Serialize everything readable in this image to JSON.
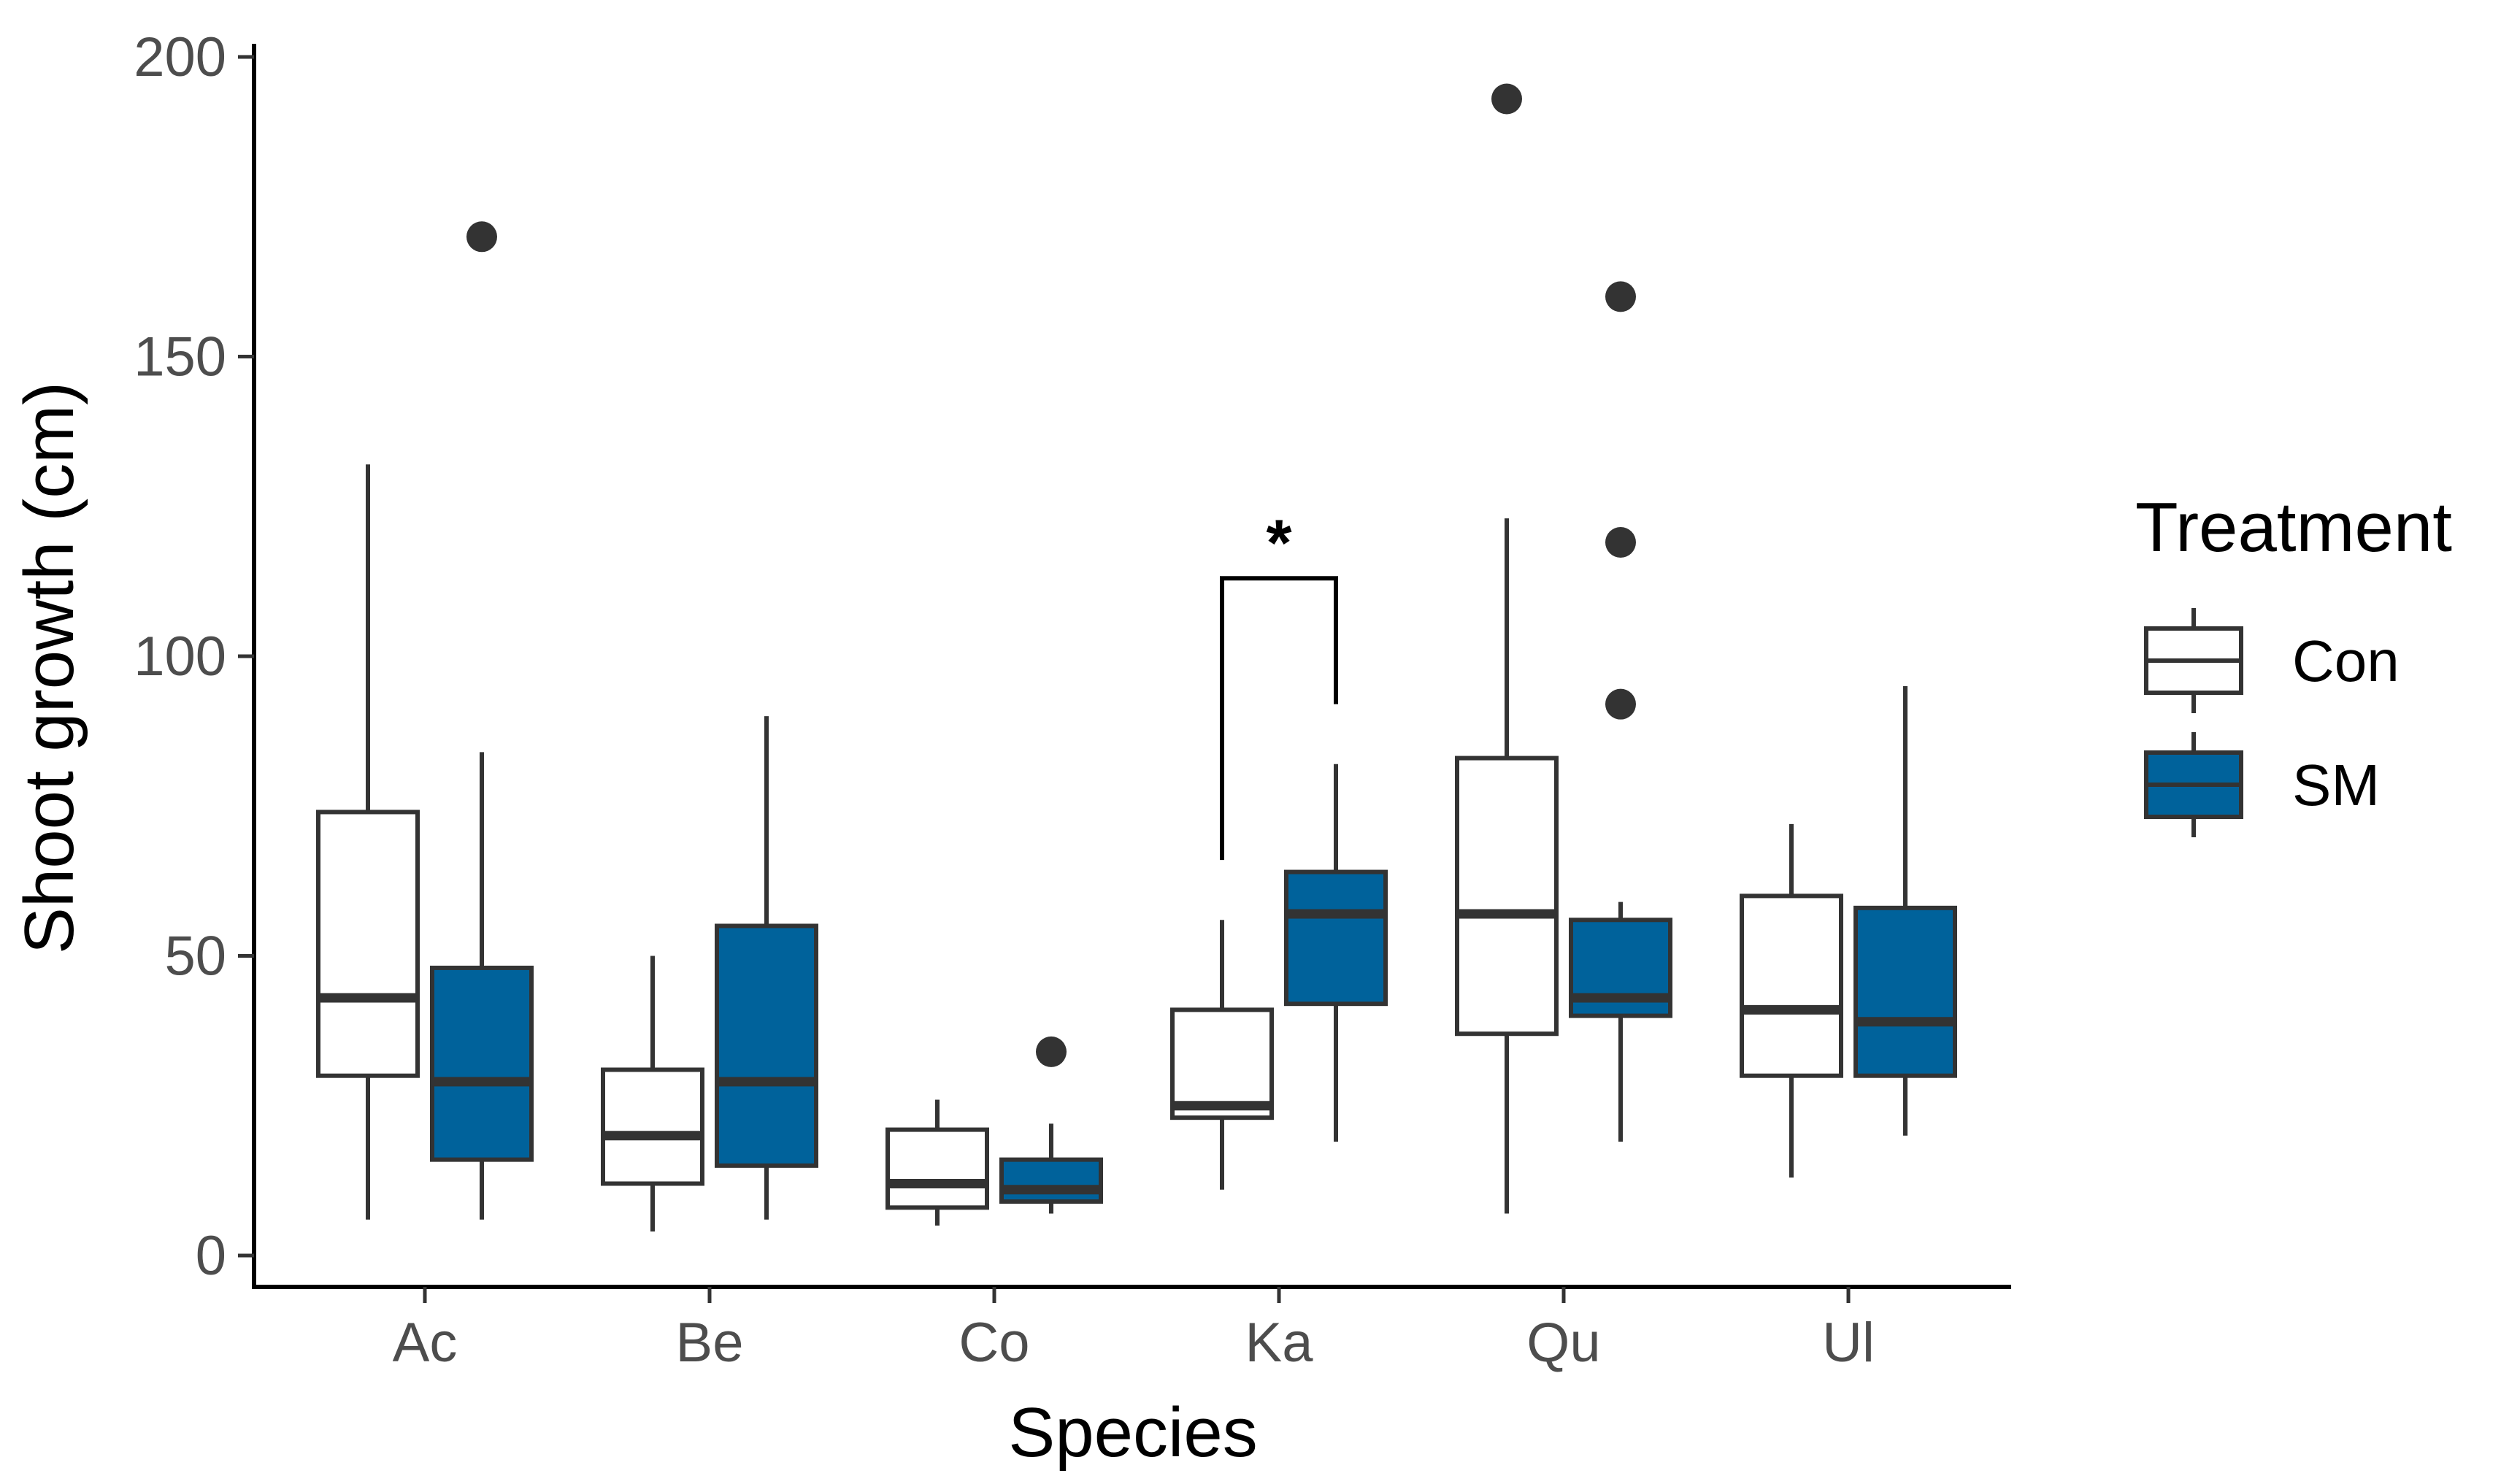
{
  "chart_data": {
    "type": "box",
    "title": "",
    "xlabel": "Species",
    "ylabel": "Shoot growth (cm)",
    "ylim": [
      -5,
      200
    ],
    "yticks": [
      0,
      50,
      100,
      150,
      200
    ],
    "grid": false,
    "categories": [
      "Ac",
      "Be",
      "Co",
      "Ka",
      "Qu",
      "Ul"
    ],
    "legend": {
      "title": "Treatment",
      "position": "right",
      "entries": [
        {
          "name": "Con",
          "fill": "#ffffff"
        },
        {
          "name": "SM",
          "fill": "#00629b"
        }
      ]
    },
    "series": [
      {
        "name": "Con",
        "fill": "#ffffff",
        "boxes": [
          {
            "category": "Ac",
            "whisker_low": 6,
            "q1": 30,
            "median": 43,
            "q3": 74,
            "whisker_high": 132,
            "outliers": []
          },
          {
            "category": "Be",
            "whisker_low": 4,
            "q1": 12,
            "median": 20,
            "q3": 31,
            "whisker_high": 50,
            "outliers": []
          },
          {
            "category": "Co",
            "whisker_low": 5,
            "q1": 8,
            "median": 12,
            "q3": 21,
            "whisker_high": 26,
            "outliers": []
          },
          {
            "category": "Ka",
            "whisker_low": 11,
            "q1": 23,
            "median": 25,
            "q3": 41,
            "whisker_high": 56,
            "outliers": []
          },
          {
            "category": "Qu",
            "whisker_low": 7,
            "q1": 37,
            "median": 57,
            "q3": 83,
            "whisker_high": 123,
            "outliers": [
              193
            ]
          },
          {
            "category": "Ul",
            "whisker_low": 13,
            "q1": 30,
            "median": 41,
            "q3": 60,
            "whisker_high": 72,
            "outliers": []
          }
        ]
      },
      {
        "name": "SM",
        "fill": "#00629b",
        "boxes": [
          {
            "category": "Ac",
            "whisker_low": 6,
            "q1": 16,
            "median": 29,
            "q3": 48,
            "whisker_high": 84,
            "outliers": [
              170
            ]
          },
          {
            "category": "Be",
            "whisker_low": 6,
            "q1": 15,
            "median": 29,
            "q3": 55,
            "whisker_high": 90,
            "outliers": []
          },
          {
            "category": "Co",
            "whisker_low": 7,
            "q1": 9,
            "median": 11,
            "q3": 16,
            "whisker_high": 22,
            "outliers": [
              34
            ]
          },
          {
            "category": "Ka",
            "whisker_low": 19,
            "q1": 42,
            "median": 57,
            "q3": 64,
            "whisker_high": 82,
            "outliers": []
          },
          {
            "category": "Qu",
            "whisker_low": 19,
            "q1": 40,
            "median": 43,
            "q3": 56,
            "whisker_high": 59,
            "outliers": [
              92,
              119,
              160
            ]
          },
          {
            "category": "Ul",
            "whisker_low": 20,
            "q1": 30,
            "median": 39,
            "q3": 58,
            "whisker_high": 95,
            "outliers": []
          }
        ]
      }
    ],
    "annotations": [
      {
        "type": "significance",
        "category": "Ka",
        "label": "*",
        "bracket_top": 113,
        "left_bottom": 66,
        "right_bottom": 92
      }
    ]
  }
}
